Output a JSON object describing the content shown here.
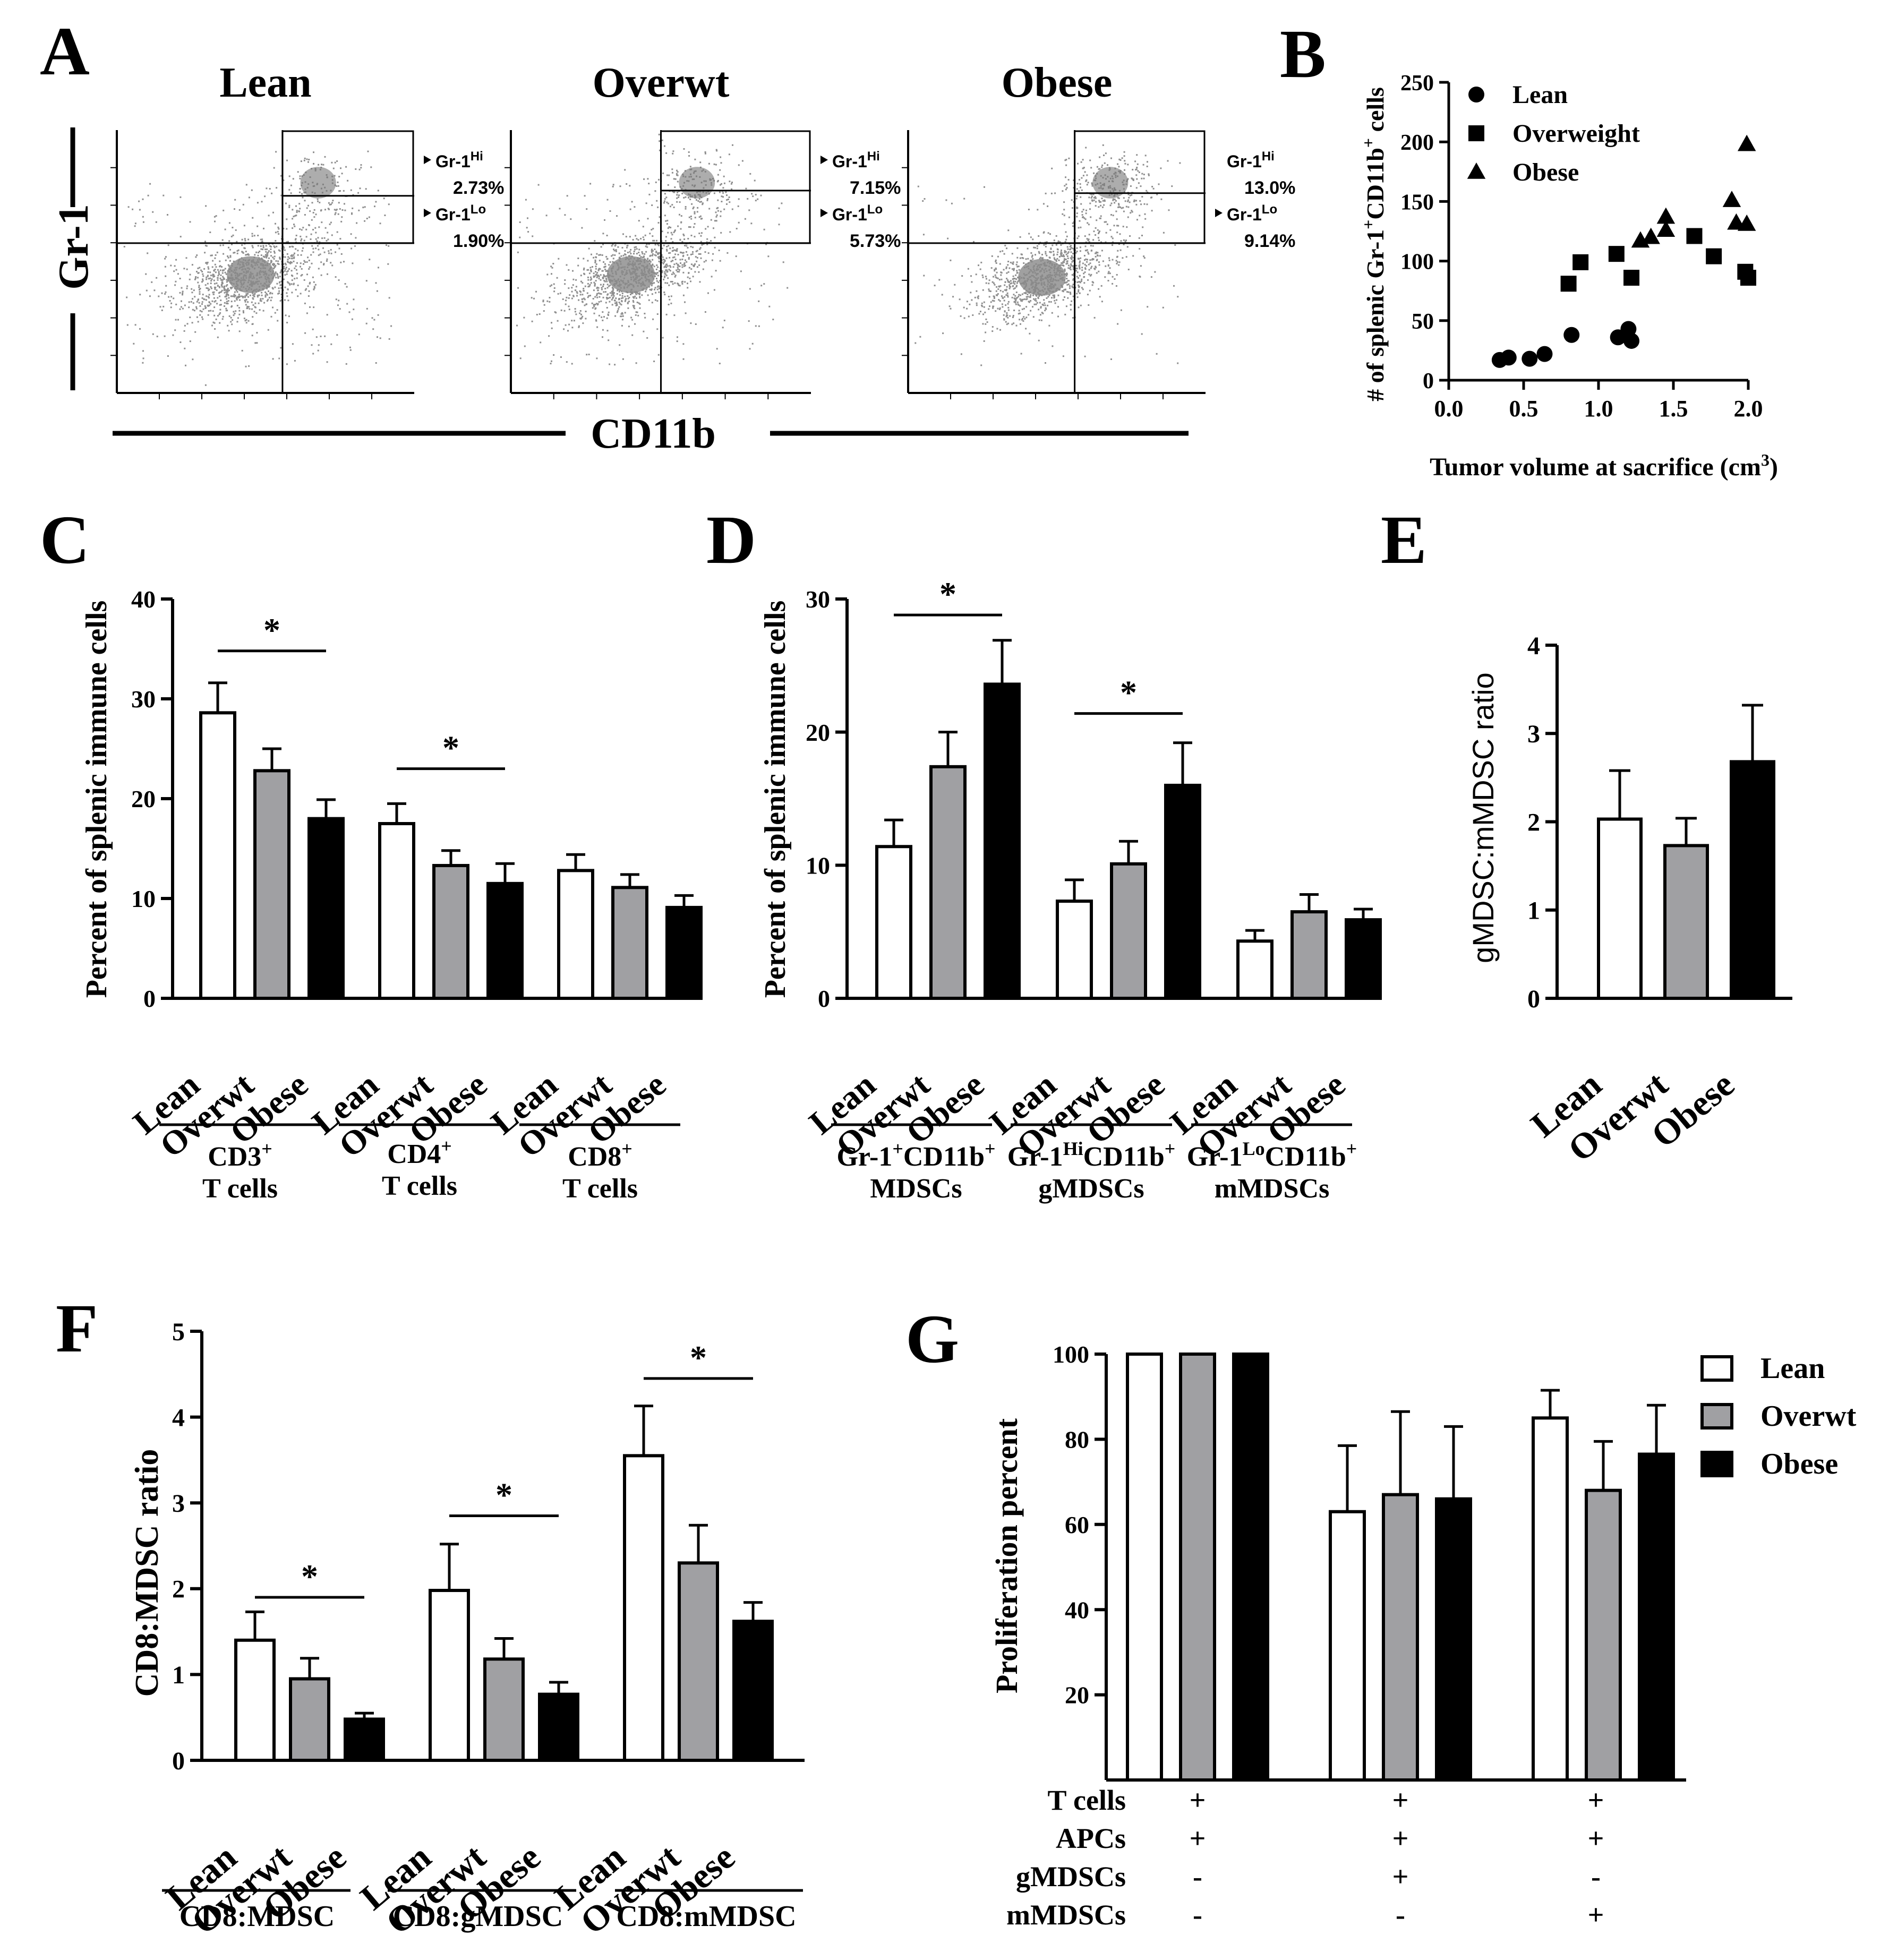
{
  "colors": {
    "lean": "#ffffff",
    "overwt": "#a0a0a3",
    "obese": "#000000",
    "axis": "#000000",
    "flow_density": "#333333"
  },
  "panels": {
    "A": {
      "letter": "A",
      "x_label": "CD11b",
      "y_label": "Gr-1",
      "plots": [
        {
          "title": "Lean",
          "hi_label": "Gr-1",
          "hi_sup": "Hi",
          "hi_value": "2.73%",
          "lo_label": "Gr-1",
          "lo_sup": "Lo",
          "lo_value": "1.90%"
        },
        {
          "title": "Overwt",
          "hi_label": "Gr-1",
          "hi_sup": "Hi",
          "hi_value": "7.15%",
          "lo_label": "Gr-1",
          "lo_sup": "Lo",
          "lo_value": "5.73%"
        },
        {
          "title": "Obese",
          "hi_label": "Gr-1",
          "hi_sup": "Hi",
          "hi_value": "13.0%",
          "lo_label": "Gr-1",
          "lo_sup": "Lo",
          "lo_value": "9.14%"
        }
      ]
    },
    "B": {
      "letter": "B",
      "y_label_parts": [
        "# of splenic Gr-1",
        "+",
        "CD11b",
        "+",
        " cells"
      ],
      "x_label_parts": [
        "Tumor volume at sacrifice (cm",
        "3",
        ")"
      ]
    },
    "C": {
      "letter": "C",
      "y_label": "Percent of splenic immune cells",
      "group_names": [
        [
          "CD3",
          "+",
          "T cells"
        ],
        [
          "CD4",
          "+",
          "T cells"
        ],
        [
          "CD8",
          "+",
          "T cells"
        ]
      ]
    },
    "D": {
      "letter": "D",
      "y_label": "Percent of splenic immune cells",
      "group_names": [
        [
          "Gr-1",
          "+",
          "CD11b",
          "+",
          "MDSCs"
        ],
        [
          "Gr-1",
          "Hi",
          "CD11b",
          "+",
          "gMDSCs"
        ],
        [
          "Gr-1",
          "Lo",
          "CD11b",
          "+",
          "mMDSCs"
        ]
      ]
    },
    "E": {
      "letter": "E",
      "y_label": "gMDSC:mMDSC ratio"
    },
    "F": {
      "letter": "F",
      "y_label": "CD8:MDSC ratio",
      "group_names": [
        "CD8:MDSC",
        "CD8:gMDSC",
        "CD8:mMDSC"
      ]
    },
    "G": {
      "letter": "G",
      "y_label": "Proliferation percent",
      "condition_rows": [
        {
          "label": "T cells",
          "marks": [
            "+",
            "+",
            "+"
          ]
        },
        {
          "label": "APCs",
          "marks": [
            "+",
            "+",
            "+"
          ]
        },
        {
          "label": "gMDSCs",
          "marks": [
            "-",
            "+",
            "-"
          ]
        },
        {
          "label": "mMDSCs",
          "marks": [
            "-",
            "-",
            "+"
          ]
        }
      ]
    }
  },
  "chart_data": [
    {
      "panel": "B",
      "type": "scatter",
      "xlabel": "Tumor volume at sacrifice (cm3)",
      "ylabel": "# of splenic Gr-1+CD11b+ cells",
      "xlim": [
        0,
        2.0
      ],
      "ylim": [
        0,
        250
      ],
      "xticks": [
        "0.0",
        "0.5",
        "1.0",
        "1.5",
        "2.0"
      ],
      "yticks": [
        "0",
        "50",
        "100",
        "150",
        "200",
        "250"
      ],
      "legend": "top-left",
      "series": [
        {
          "name": "Lean",
          "marker": "circle",
          "x": [
            0.34,
            0.4,
            0.54,
            0.64,
            0.82,
            1.13,
            1.2,
            1.22
          ],
          "y": [
            17,
            19,
            18,
            22,
            38,
            36,
            43,
            33
          ]
        },
        {
          "name": "Overweight",
          "marker": "square",
          "x": [
            0.8,
            0.88,
            1.12,
            1.22,
            1.64,
            1.77,
            1.98,
            2.0
          ],
          "y": [
            81,
            99,
            106,
            86,
            121,
            104,
            91,
            86
          ]
        },
        {
          "name": "Obese",
          "marker": "triangle",
          "x": [
            1.28,
            1.35,
            1.45,
            1.45,
            1.89,
            1.92,
            1.99,
            1.99
          ],
          "y": [
            117,
            120,
            126,
            137,
            151,
            132,
            131,
            198
          ]
        }
      ]
    },
    {
      "panel": "C",
      "type": "bar",
      "ylabel": "Percent of splenic immune cells",
      "ylim": [
        0,
        40
      ],
      "yticks": [
        "0",
        "10",
        "20",
        "30",
        "40"
      ],
      "categories": [
        "Lean",
        "Overwt",
        "Obese"
      ],
      "groups": [
        {
          "name": "CD3+ T cells",
          "values": [
            28.6,
            22.8,
            18.0
          ],
          "errors": [
            3.0,
            2.2,
            1.9
          ]
        },
        {
          "name": "CD4+ T cells",
          "values": [
            17.5,
            13.3,
            11.5
          ],
          "errors": [
            2.0,
            1.5,
            2.0
          ]
        },
        {
          "name": "CD8+ T cells",
          "values": [
            12.8,
            11.1,
            9.1
          ],
          "errors": [
            1.6,
            1.3,
            1.2
          ]
        }
      ],
      "significance": [
        {
          "group": 0,
          "from": 0,
          "to": 2,
          "y": 34.8,
          "label": "*"
        },
        {
          "group": 1,
          "from": 0,
          "to": 2,
          "y": 23.0,
          "label": "*"
        }
      ]
    },
    {
      "panel": "D",
      "type": "bar",
      "ylabel": "Percent of splenic immune cells",
      "ylim": [
        0,
        30
      ],
      "yticks": [
        "0",
        "10",
        "20",
        "30"
      ],
      "categories": [
        "Lean",
        "Overwt",
        "Obese"
      ],
      "groups": [
        {
          "name": "Gr-1+CD11b+ MDSCs",
          "values": [
            11.4,
            17.4,
            23.6
          ],
          "errors": [
            2.0,
            2.6,
            3.3
          ]
        },
        {
          "name": "Gr-1HiCD11b+ gMDSCs",
          "values": [
            7.3,
            10.1,
            16.0
          ],
          "errors": [
            1.6,
            1.7,
            3.2
          ]
        },
        {
          "name": "Gr-1LoCD11b+ mMDSCs",
          "values": [
            4.3,
            6.5,
            5.9
          ],
          "errors": [
            0.8,
            1.3,
            0.8
          ]
        }
      ],
      "significance": [
        {
          "group": 0,
          "from": 0,
          "to": 2,
          "y": 28.8,
          "label": "*"
        },
        {
          "group": 1,
          "from": 0,
          "to": 2,
          "y": 21.4,
          "label": "*"
        }
      ]
    },
    {
      "panel": "E",
      "type": "bar",
      "ylabel": "gMDSC:mMDSC ratio",
      "ylim": [
        0,
        4
      ],
      "yticks": [
        "0",
        "1",
        "2",
        "3",
        "4"
      ],
      "categories": [
        "Lean",
        "Overwt",
        "Obese"
      ],
      "groups": [
        {
          "name": "",
          "values": [
            2.03,
            1.73,
            2.68
          ],
          "errors": [
            0.55,
            0.31,
            0.64
          ]
        }
      ],
      "significance": []
    },
    {
      "panel": "F",
      "type": "bar",
      "ylabel": "CD8:MDSC ratio",
      "ylim": [
        0,
        5
      ],
      "yticks": [
        "0",
        "1",
        "2",
        "3",
        "4",
        "5"
      ],
      "categories": [
        "Lean",
        "Overwt",
        "Obese"
      ],
      "groups": [
        {
          "name": "CD8:MDSC",
          "values": [
            1.4,
            0.95,
            0.48
          ],
          "errors": [
            0.33,
            0.24,
            0.07
          ]
        },
        {
          "name": "CD8:gMDSC",
          "values": [
            1.98,
            1.18,
            0.77
          ],
          "errors": [
            0.54,
            0.24,
            0.14
          ]
        },
        {
          "name": "CD8:mMDSC",
          "values": [
            3.55,
            2.3,
            1.62
          ],
          "errors": [
            0.58,
            0.44,
            0.22
          ]
        }
      ],
      "significance": [
        {
          "group": 0,
          "from": 0,
          "to": 2,
          "y": 1.9,
          "label": "*"
        },
        {
          "group": 1,
          "from": 0,
          "to": 2,
          "y": 2.85,
          "label": "*"
        },
        {
          "group": 2,
          "from": 0,
          "to": 2,
          "y": 4.45,
          "label": "*"
        }
      ]
    },
    {
      "panel": "G",
      "type": "bar",
      "ylabel": "Proliferation percent",
      "ylim": [
        0,
        100
      ],
      "yticks": [
        "20",
        "40",
        "60",
        "80",
        "100"
      ],
      "categories": [
        "Lean",
        "Overwt",
        "Obese"
      ],
      "legend": "top-right",
      "groups": [
        {
          "name": "T cells + APCs",
          "values": [
            100,
            100,
            100
          ],
          "errors": [
            0,
            0,
            0
          ]
        },
        {
          "name": "+ gMDSCs",
          "values": [
            63,
            67,
            66
          ],
          "errors": [
            15.5,
            19.5,
            17
          ]
        },
        {
          "name": "+ mMDSCs",
          "values": [
            85,
            68,
            76.5
          ],
          "errors": [
            6.5,
            11.5,
            11.5
          ]
        }
      ],
      "significance": []
    }
  ]
}
